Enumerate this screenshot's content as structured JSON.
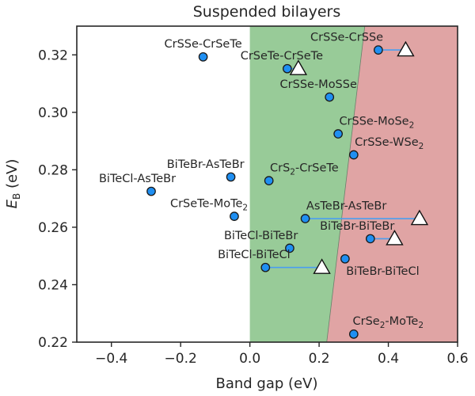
{
  "chart_data": {
    "type": "scatter",
    "title": "Suspended bilayers",
    "xlabel": "Band gap (eV)",
    "ylabel_main": "E",
    "ylabel_sub": "B",
    "ylabel_unit": " (eV)",
    "xlim": [
      -0.5,
      0.6
    ],
    "ylim": [
      0.22,
      0.33
    ],
    "xticks": [
      -0.4,
      -0.2,
      0.0,
      0.2,
      0.4,
      0.6
    ],
    "xtick_labels": [
      "−0.4",
      "−0.2",
      "0.0",
      "0.2",
      "0.4",
      "0.6"
    ],
    "yticks": [
      0.22,
      0.24,
      0.26,
      0.28,
      0.3,
      0.32
    ],
    "ytick_labels": [
      "0.22",
      "0.24",
      "0.26",
      "0.28",
      "0.30",
      "0.32"
    ],
    "regions": [
      {
        "name": "green region",
        "color": "#98cb98",
        "polygon": [
          [
            0.0,
            0.22
          ],
          [
            0.222,
            0.22
          ],
          [
            0.332,
            0.33
          ],
          [
            0.0,
            0.33
          ]
        ]
      },
      {
        "name": "red region",
        "color": "#e0a4a4",
        "polygon": [
          [
            0.222,
            0.22
          ],
          [
            0.6,
            0.22
          ],
          [
            0.6,
            0.33
          ],
          [
            0.332,
            0.33
          ]
        ]
      }
    ],
    "circle_color": "#1f8ff2",
    "triangle_color": "#ffffff",
    "connector_color": "#4a9ef0",
    "points": [
      {
        "label": "CrSSe-CrSeTe",
        "label_sub": "",
        "label_end": "",
        "x": -0.135,
        "y": 0.3193,
        "label_anchor": "middle",
        "label_x": -0.135,
        "label_y": 0.3225
      },
      {
        "label": "CrSeTe-CrSeTe",
        "label_sub": "",
        "label_end": "",
        "x": 0.108,
        "y": 0.3152,
        "label_anchor": "middle",
        "label_x": 0.092,
        "label_y": 0.3184,
        "tri_x": 0.14,
        "tri_y": 0.3152
      },
      {
        "label": "CrSSe-CrSSe",
        "label_sub": "",
        "label_end": "",
        "x": 0.371,
        "y": 0.3217,
        "label_anchor": "middle",
        "label_x": 0.28,
        "label_y": 0.3249,
        "tri_x": 0.45,
        "tri_y": 0.3217
      },
      {
        "label": "CrSSe-MoSSe",
        "label_sub": "",
        "label_end": "",
        "x": 0.23,
        "y": 0.3053,
        "label_anchor": "middle",
        "label_x": 0.198,
        "label_y": 0.3085
      },
      {
        "label": "CrSSe-MoSe",
        "label_sub": "2",
        "label_end": "",
        "x": 0.255,
        "y": 0.2925,
        "label_anchor": "start",
        "label_x": 0.258,
        "label_y": 0.2957
      },
      {
        "label": "CrSSe-WSe",
        "label_sub": "2",
        "label_end": "",
        "x": 0.3,
        "y": 0.2852,
        "label_anchor": "start",
        "label_x": 0.303,
        "label_y": 0.2884
      },
      {
        "label": "CrS",
        "label_sub": "2",
        "label_end": "-CrSeTe",
        "x": 0.055,
        "y": 0.2762,
        "label_anchor": "start",
        "label_x": 0.058,
        "label_y": 0.2794
      },
      {
        "label": "BiTeBr-AsTeBr",
        "label_sub": "",
        "label_end": "",
        "x": -0.055,
        "y": 0.2775,
        "label_anchor": "middle",
        "label_x": -0.128,
        "label_y": 0.2807
      },
      {
        "label": "BiTeCl-AsTeBr",
        "label_sub": "",
        "label_end": "",
        "x": -0.285,
        "y": 0.2725,
        "label_anchor": "middle",
        "label_x": -0.325,
        "label_y": 0.2757
      },
      {
        "label": "CrSeTe-MoTe",
        "label_sub": "2",
        "label_end": "",
        "x": -0.045,
        "y": 0.2638,
        "label_anchor": "middle",
        "label_x": -0.118,
        "label_y": 0.267
      },
      {
        "label": "AsTeBr-AsTeBr",
        "label_sub": "",
        "label_end": "",
        "x": 0.16,
        "y": 0.263,
        "label_anchor": "start",
        "label_x": 0.163,
        "label_y": 0.2662,
        "tri_x": 0.49,
        "tri_y": 0.263
      },
      {
        "label": "BiTeBr-BiTeBr",
        "label_sub": "",
        "label_end": "",
        "x": 0.348,
        "y": 0.256,
        "label_anchor": "middle",
        "label_x": 0.31,
        "label_y": 0.2592,
        "tri_x": 0.418,
        "tri_y": 0.256
      },
      {
        "label": "BiTeCl-BiTeBr",
        "label_sub": "",
        "label_end": "",
        "x": 0.115,
        "y": 0.2527,
        "label_anchor": "middle",
        "label_x": 0.032,
        "label_y": 0.2559
      },
      {
        "label": "BiTeBr-BiTeCl",
        "label_sub": "",
        "label_end": "",
        "x": 0.275,
        "y": 0.249,
        "label_anchor": "start",
        "label_x": 0.278,
        "label_y": 0.2435
      },
      {
        "label": "BiTeCl-BiTeCl",
        "label_sub": "",
        "label_end": "",
        "x": 0.045,
        "y": 0.246,
        "label_anchor": "middle",
        "label_x": 0.012,
        "label_y": 0.2492,
        "tri_x": 0.208,
        "tri_y": 0.246
      },
      {
        "label": "CrSe",
        "label_sub": "2",
        "label_end": "-MoTe",
        "label_sub2": "2",
        "x": 0.3,
        "y": 0.2228,
        "label_anchor": "start",
        "label_x": 0.297,
        "label_y": 0.226
      }
    ]
  }
}
